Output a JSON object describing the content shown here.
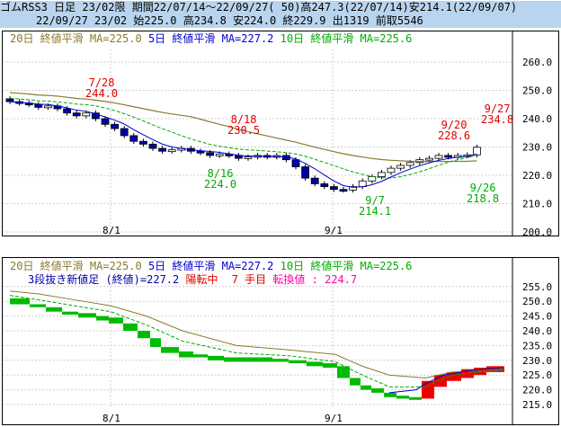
{
  "header": {
    "line1": "ゴムRSS3 日足 23/02限 期間22/07/14～22/09/27( 50)高247.3(22/07/14)安214.1(22/09/07)",
    "line2": "22/09/27 23/02 始225.0 高234.8 安224.0 終229.9 出1319 前取5546"
  },
  "colors": {
    "ma20": "#8b7a2b",
    "ma5": "#0000cc",
    "ma10": "#00aa00",
    "up": "#ffffff",
    "down": "#0000aa",
    "green": "#00bb00",
    "red": "#ee0000",
    "header_bg": "#b9d4ef",
    "pink": "#ff00aa"
  },
  "top": {
    "legend": {
      "ma20": "20日 終値平滑 MA=225.0",
      "ma5": "5日 終値平滑 MA=227.2",
      "ma10": "10日 終値平滑 MA=225.6"
    },
    "y_labels": [
      "260.0",
      "250.0",
      "240.0",
      "230.0",
      "220.0",
      "210.0",
      "200.0"
    ],
    "x_labels": [
      "8/1",
      "9/1"
    ],
    "annotations": [
      {
        "date": "7/28",
        "value": "244.0",
        "color": "red"
      },
      {
        "date": "8/18",
        "value": "230.5",
        "color": "red"
      },
      {
        "date": "8/16",
        "value": "224.0",
        "color": "green"
      },
      {
        "date": "9/7",
        "value": "214.1",
        "color": "green"
      },
      {
        "date": "9/20",
        "value": "228.6",
        "color": "red"
      },
      {
        "date": "9/27",
        "value": "234.8",
        "color": "red"
      },
      {
        "date": "9/26",
        "value": "218.8",
        "color": "green"
      }
    ]
  },
  "bottom": {
    "legend": {
      "ma20": "20日 終値平滑 MA=225.0",
      "ma5": "5日 終値平滑 MA=227.2",
      "ma10": "10日 終値平滑 MA=225.6"
    },
    "info": {
      "prefix": "3段抜き新値足 (終値)=227.2",
      "state": "陽転中",
      "count": "7 手目",
      "switch": "転換値 : 224.7"
    },
    "y_labels": [
      "255.0",
      "250.0",
      "245.0",
      "240.0",
      "235.0",
      "230.0",
      "225.0",
      "220.0",
      "215.0"
    ],
    "x_labels": [
      "8/1",
      "9/1"
    ]
  },
  "chart_data": [
    {
      "type": "candlestick",
      "title": "ゴムRSS3 日足 23/02限",
      "ylim": [
        200,
        260
      ],
      "x": [
        "7/14",
        "7/28",
        "8/1",
        "8/16",
        "8/18",
        "9/1",
        "9/7",
        "9/20",
        "9/26",
        "9/27"
      ],
      "candles": [
        {
          "date": "7/14",
          "high": 247.3
        },
        {
          "date": "7/28",
          "high": 244.0
        },
        {
          "date": "8/16",
          "low": 224.0
        },
        {
          "date": "8/18",
          "high": 230.5
        },
        {
          "date": "9/7",
          "low": 214.1
        },
        {
          "date": "9/20",
          "high": 228.6
        },
        {
          "date": "9/26",
          "low": 218.8
        },
        {
          "date": "9/27",
          "open": 225.0,
          "high": 234.8,
          "low": 224.0,
          "close": 229.9
        }
      ],
      "series": [
        {
          "name": "20日 終値平滑",
          "last": 225.0
        },
        {
          "name": "5日 終値平滑",
          "last": 227.2
        },
        {
          "name": "10日 終値平滑",
          "last": 225.6
        }
      ]
    },
    {
      "type": "bar",
      "title": "3段抜き新値足 (終値)",
      "ylim": [
        215,
        255
      ],
      "last": 227.2,
      "switch_value": 224.7
    }
  ]
}
